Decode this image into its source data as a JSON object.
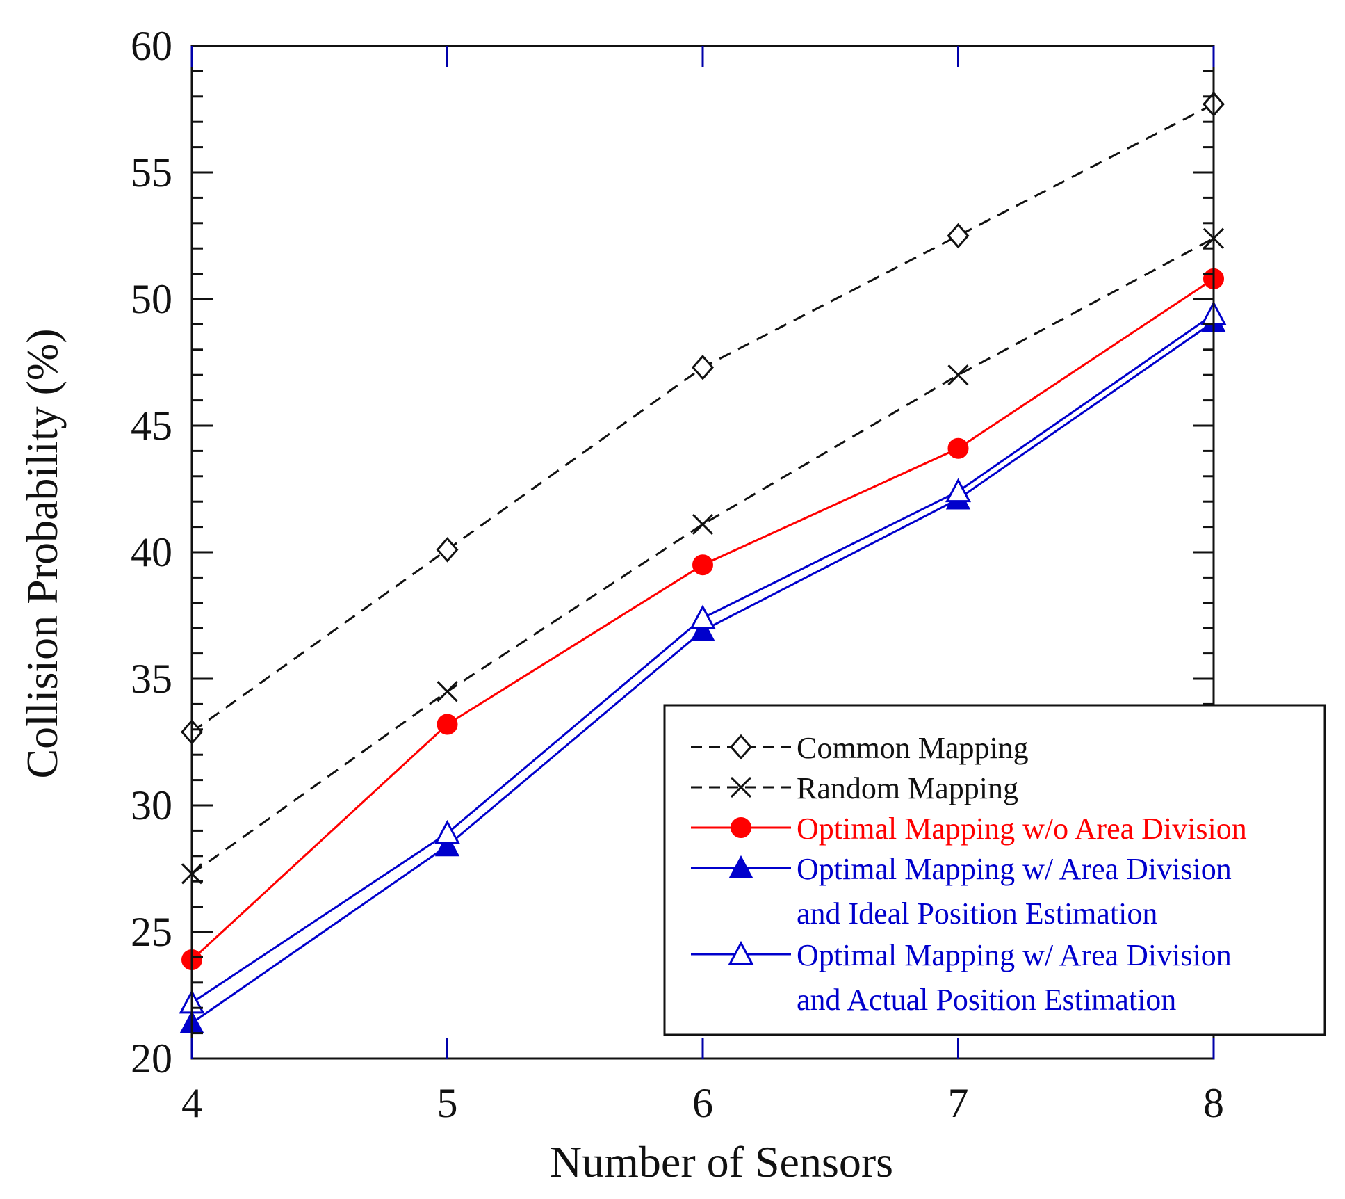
{
  "chart_data": {
    "type": "line",
    "title": "",
    "xlabel": "Number of Sensors",
    "ylabel": "Collision Probability (%)",
    "x": [
      4,
      5,
      6,
      7,
      8
    ],
    "xticks": [
      "4",
      "5",
      "6",
      "7",
      "8"
    ],
    "yticks": [
      "20",
      "25",
      "30",
      "35",
      "40",
      "45",
      "50",
      "55",
      "60"
    ],
    "xlim": [
      4,
      8
    ],
    "ylim": [
      20,
      60
    ],
    "grid": false,
    "legend_position": "bottom-right",
    "series": [
      {
        "name": "Common Mapping",
        "legend_lines": [
          "Common Mapping"
        ],
        "values": [
          32.9,
          40.1,
          47.3,
          52.5,
          57.7
        ],
        "color": "#111111",
        "text_color": "#111111",
        "dash": "dashed",
        "marker": "diamond-open"
      },
      {
        "name": "Random Mapping",
        "legend_lines": [
          "Random Mapping"
        ],
        "values": [
          27.3,
          34.5,
          41.1,
          47.0,
          52.4
        ],
        "color": "#111111",
        "text_color": "#111111",
        "dash": "dashed",
        "marker": "x"
      },
      {
        "name": "Optimal Mapping w/o Area Division",
        "legend_lines": [
          "Optimal Mapping w/o Area Division"
        ],
        "values": [
          23.9,
          33.2,
          39.5,
          44.1,
          50.8
        ],
        "color": "#ff0000",
        "text_color": "#ff0000",
        "dash": "solid",
        "marker": "circle-filled"
      },
      {
        "name": "Optimal Mapping w/ Area Division and Ideal Position Estimation",
        "legend_lines": [
          "Optimal Mapping w/ Area Division",
          "and Ideal Position Estimation"
        ],
        "values": [
          21.4,
          28.4,
          36.9,
          42.1,
          49.1
        ],
        "color": "#0000cc",
        "text_color": "#0000cc",
        "dash": "solid",
        "marker": "triangle-filled"
      },
      {
        "name": "Optimal Mapping w/ Area Division and Actual Position Estimation",
        "legend_lines": [
          "Optimal Mapping w/ Area Division",
          "and Actual Position Estimation"
        ],
        "values": [
          22.2,
          28.9,
          37.4,
          42.4,
          49.4
        ],
        "color": "#0000cc",
        "text_color": "#0000cc",
        "dash": "solid",
        "marker": "triangle-open"
      }
    ]
  }
}
